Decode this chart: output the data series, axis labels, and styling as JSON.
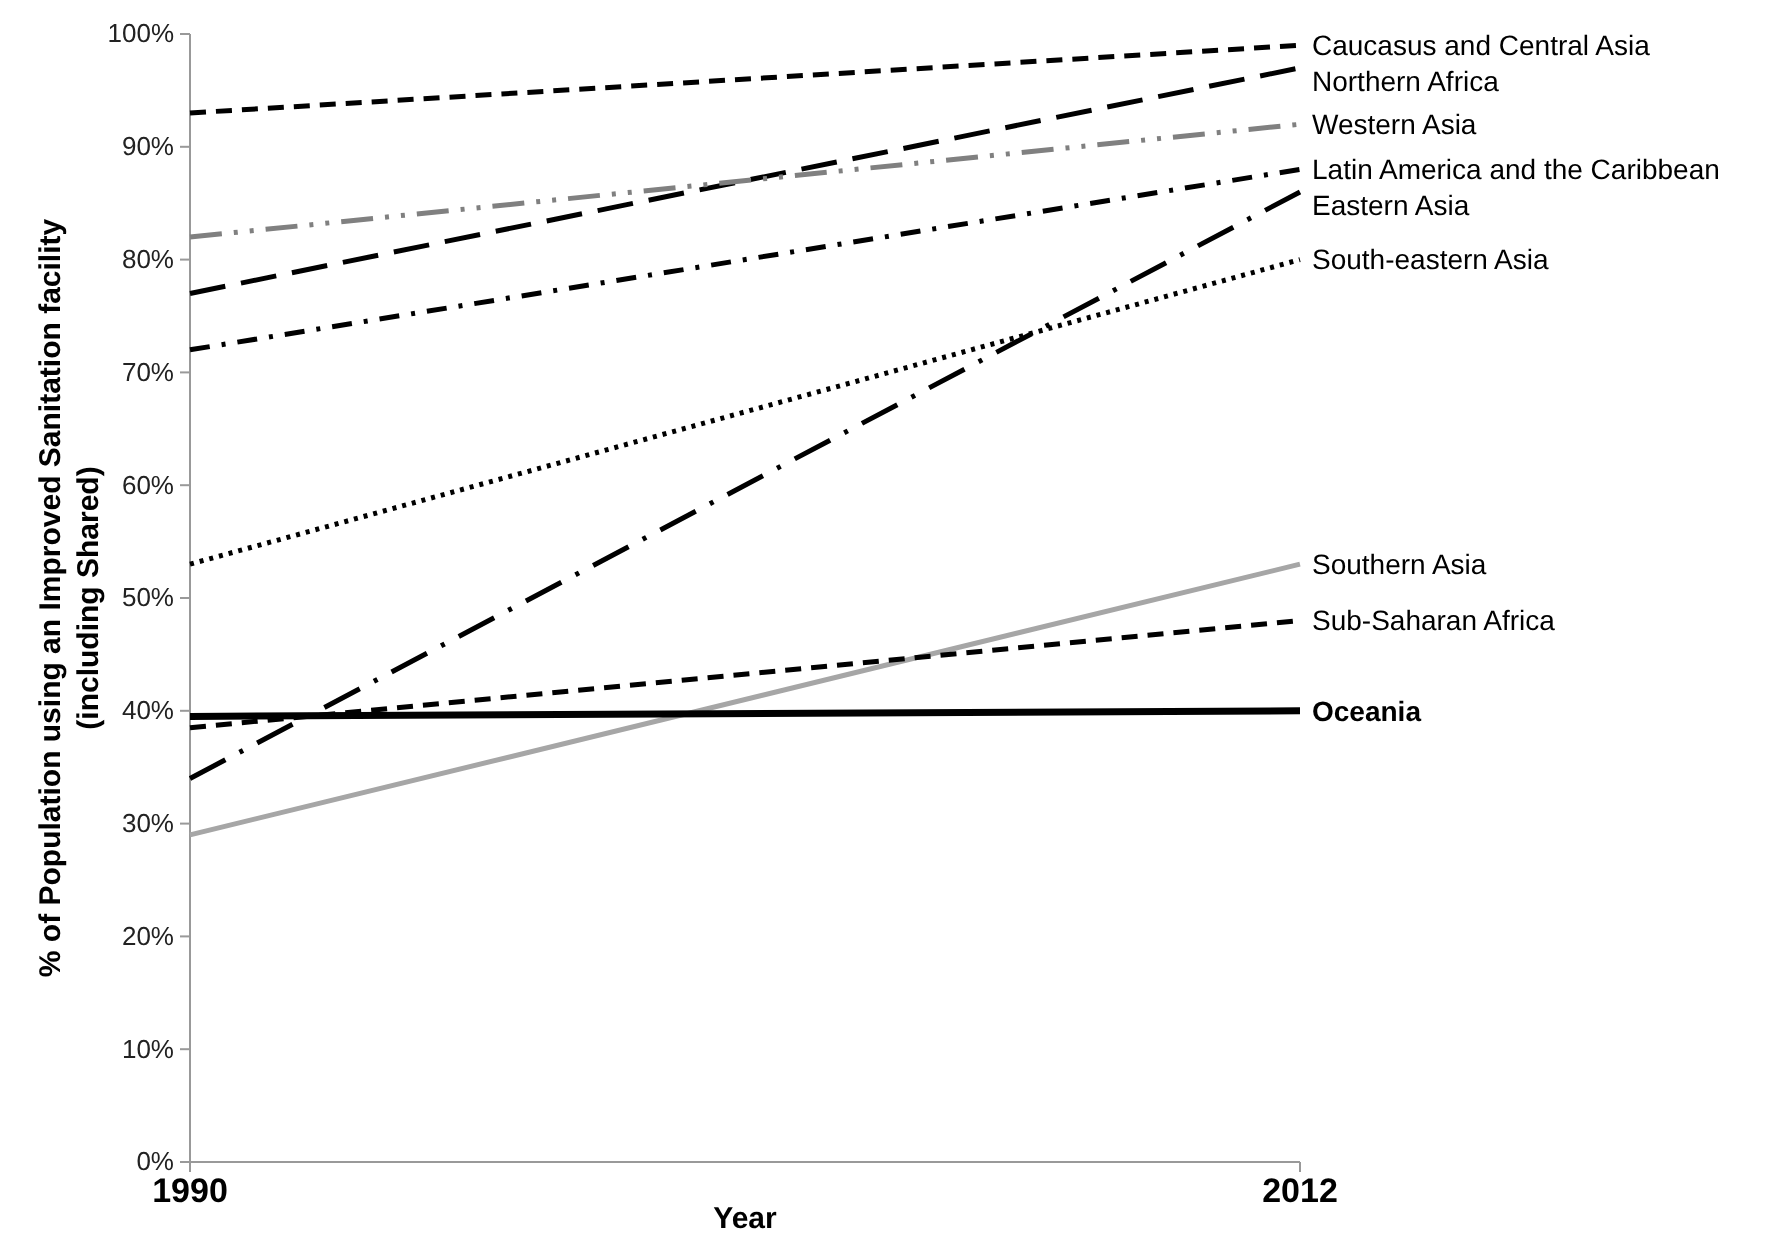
{
  "chart_data": {
    "type": "line",
    "xlabel": "Year",
    "ylabel": "% of Population  using an Improved Sanitation facility (including Shared)",
    "x": [
      1990,
      2012
    ],
    "xlim": [
      1990,
      2012
    ],
    "xticks": [
      1990,
      2012
    ],
    "ylim": [
      0,
      100
    ],
    "yticks": [
      {
        "value": 0,
        "label": "0%"
      },
      {
        "value": 10,
        "label": "10%"
      },
      {
        "value": 20,
        "label": "20%"
      },
      {
        "value": 30,
        "label": "30%"
      },
      {
        "value": 40,
        "label": "40%"
      },
      {
        "value": 50,
        "label": "50%"
      },
      {
        "value": 60,
        "label": "60%"
      },
      {
        "value": 70,
        "label": "70%"
      },
      {
        "value": 80,
        "label": "80%"
      },
      {
        "value": 90,
        "label": "90%"
      },
      {
        "value": 100,
        "label": "100%"
      }
    ],
    "grid": false,
    "legend": false,
    "marker": "none",
    "series": [
      {
        "name": "Caucasus and Central Asia",
        "color": "#000000",
        "line_style": "dashed",
        "values": [
          93,
          99
        ]
      },
      {
        "name": "Northern Africa",
        "color": "#000000",
        "line_style": "longdash",
        "values": [
          77,
          97
        ]
      },
      {
        "name": "Western Asia",
        "color": "#808080",
        "line_style": "dashdotdot",
        "values": [
          82,
          92
        ]
      },
      {
        "name": "Latin America and the Caribbean",
        "color": "#000000",
        "line_style": "dashdot",
        "values": [
          72,
          88
        ]
      },
      {
        "name": "Eastern Asia",
        "color": "#000000",
        "line_style": "longdashdot",
        "values": [
          34,
          86
        ]
      },
      {
        "name": "South-eastern Asia",
        "color": "#000000",
        "line_style": "dotted",
        "values": [
          53,
          80
        ]
      },
      {
        "name": "Southern Asia",
        "color": "#a6a6a6",
        "line_style": "solid",
        "values": [
          29,
          53
        ]
      },
      {
        "name": "Sub-Saharan Africa",
        "color": "#000000",
        "line_style": "dashed",
        "values": [
          38.5,
          48
        ]
      },
      {
        "name": "Oceania",
        "color": "#000000",
        "line_style": "solid",
        "values": [
          39.5,
          40
        ]
      }
    ]
  }
}
